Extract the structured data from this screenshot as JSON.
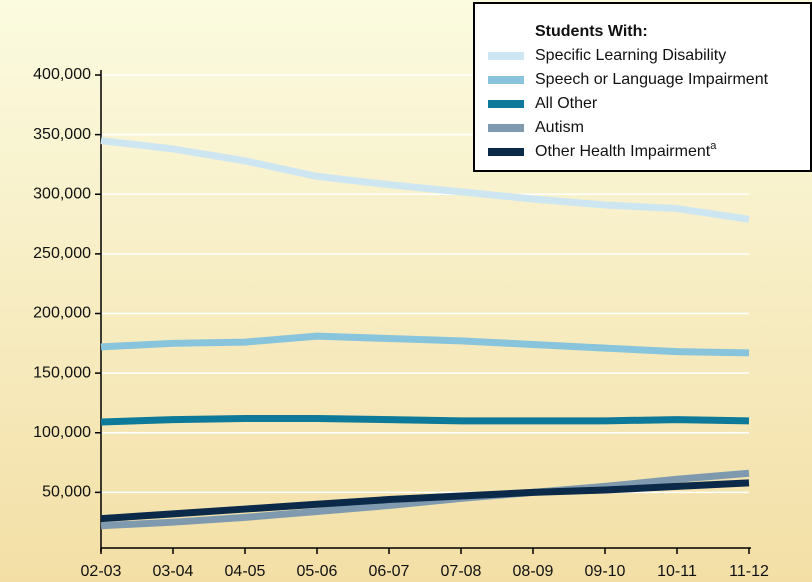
{
  "chart_data": {
    "type": "line",
    "legend_title": "Students With:",
    "categories": [
      "02-03",
      "03-04",
      "04-05",
      "05-06",
      "06-07",
      "07-08",
      "08-09",
      "09-10",
      "10-11",
      "11-12"
    ],
    "series": [
      {
        "name": "Specific Learning Disability",
        "color": "#cde6f2",
        "values": [
          345000,
          338000,
          328000,
          315000,
          308000,
          302000,
          296000,
          291000,
          288000,
          279000
        ]
      },
      {
        "name": "Speech or Language Impairment",
        "color": "#88c4db",
        "values": [
          172000,
          175000,
          176000,
          181000,
          179000,
          177000,
          174000,
          171000,
          168000,
          167000
        ]
      },
      {
        "name": "All Other",
        "color": "#0e7a9a",
        "values": [
          109000,
          111000,
          112000,
          112000,
          111000,
          110000,
          110000,
          110000,
          111000,
          110000
        ]
      },
      {
        "name": "Autism",
        "color": "#7f9aaf",
        "values": [
          22000,
          25000,
          29000,
          34000,
          39000,
          45000,
          50000,
          55000,
          61000,
          66000
        ]
      },
      {
        "name": "Other Health Impairment",
        "footnote": "a",
        "color": "#0b2a4a",
        "values": [
          28000,
          32000,
          36000,
          40000,
          44000,
          47000,
          50000,
          52000,
          55000,
          58000
        ]
      }
    ],
    "ylim": [
      0,
      400000
    ],
    "yticks": [
      {
        "value": 50000,
        "label": "50,000"
      },
      {
        "value": 100000,
        "label": "100,000"
      },
      {
        "value": 150000,
        "label": "150,000"
      },
      {
        "value": 200000,
        "label": "200,000"
      },
      {
        "value": 250000,
        "label": "250,000"
      },
      {
        "value": 300000,
        "label": "300,000"
      },
      {
        "value": 350000,
        "label": "350,000"
      },
      {
        "value": 400000,
        "label": "400,000"
      }
    ],
    "grid": true
  }
}
